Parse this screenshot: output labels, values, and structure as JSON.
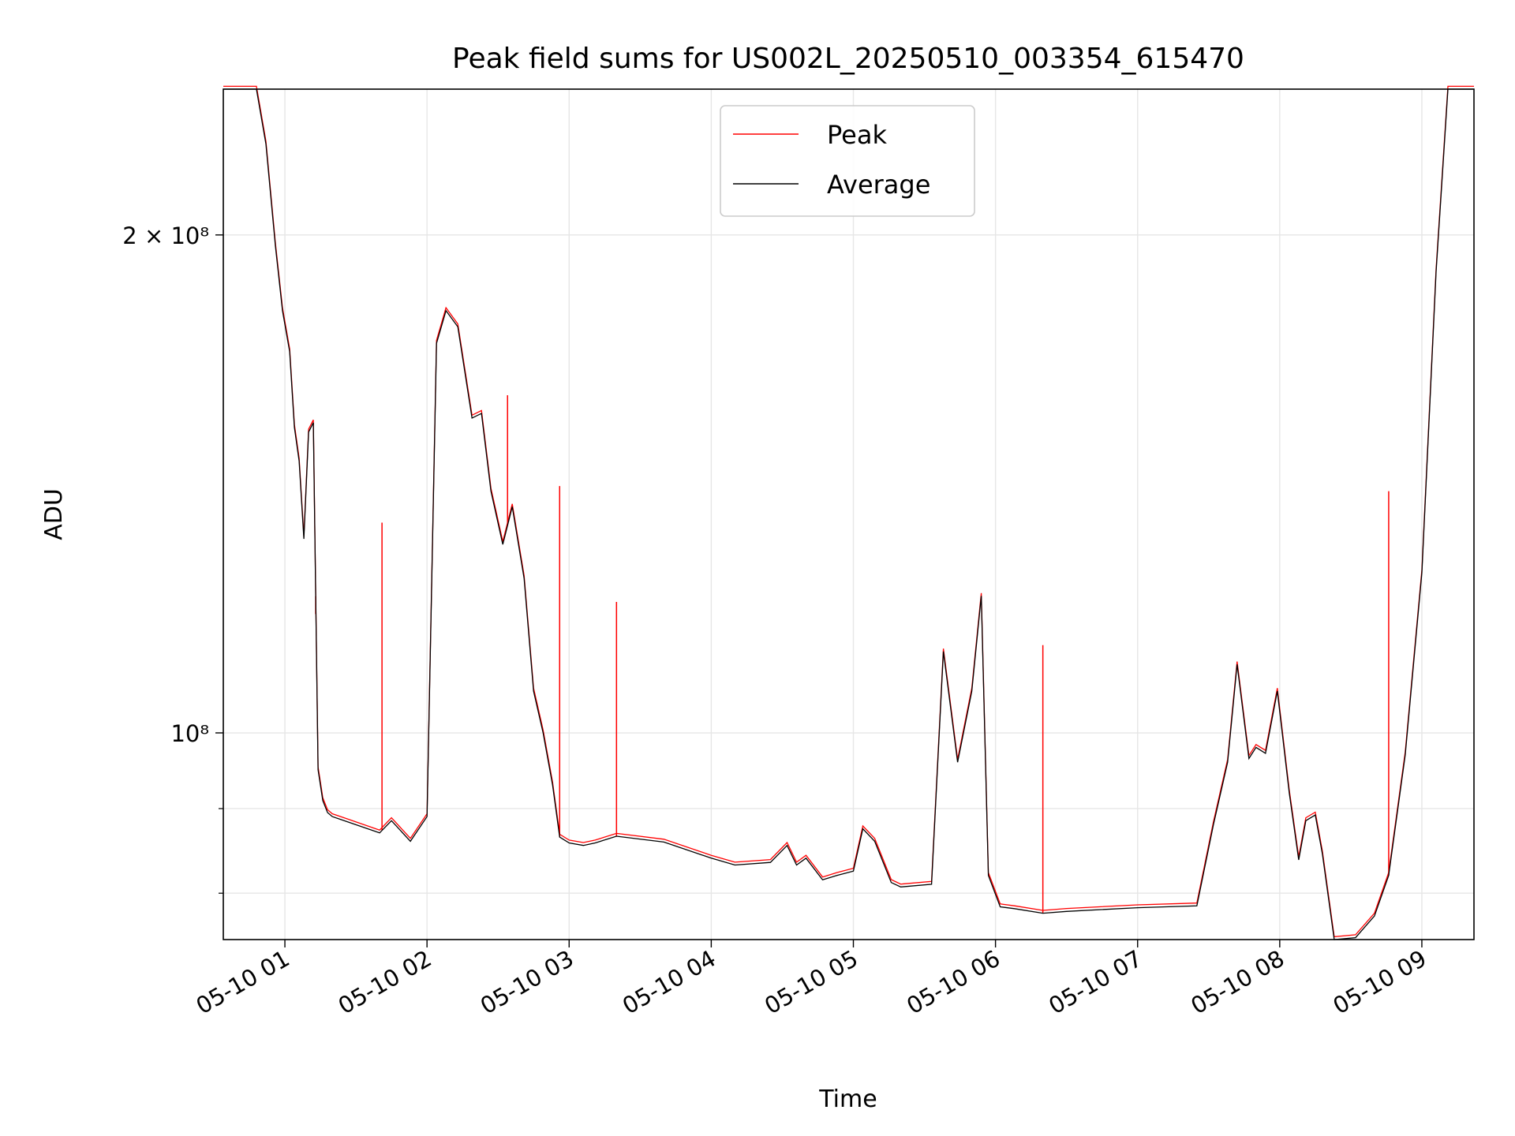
{
  "chart_data": {
    "type": "line",
    "title": "Peak field sums for US002L_20250510_003354_615470",
    "xlabel": "Time",
    "ylabel": "ADU",
    "xlim": [
      "2025-05-10 00:34",
      "2025-05-10 09:22"
    ],
    "ylim": [
      75000000,
      245000000
    ],
    "yscale": "log",
    "grid": true,
    "legend_position": "top-center",
    "x_ticks": [
      "05-10 01",
      "05-10 02",
      "05-10 03",
      "05-10 04",
      "05-10 05",
      "05-10 06",
      "05-10 07",
      "05-10 08",
      "05-10 09"
    ],
    "y_ticks": [
      {
        "value": 200000000,
        "label": "2 × 10⁸"
      },
      {
        "value": 100000000,
        "label": "10⁸"
      }
    ],
    "x": [
      "2025-05-10 00:34",
      "2025-05-10 00:48",
      "2025-05-10 00:52",
      "2025-05-10 00:56",
      "2025-05-10 00:59",
      "2025-05-10 01:02",
      "2025-05-10 01:04",
      "2025-05-10 01:06",
      "2025-05-10 01:08",
      "2025-05-10 01:10",
      "2025-05-10 01:12",
      "2025-05-10 01:14",
      "2025-05-10 01:16",
      "2025-05-10 01:18",
      "2025-05-10 01:20",
      "2025-05-10 01:25",
      "2025-05-10 01:40",
      "2025-05-10 01:45",
      "2025-05-10 01:53",
      "2025-05-10 02:00",
      "2025-05-10 02:04",
      "2025-05-10 02:08",
      "2025-05-10 02:13",
      "2025-05-10 02:19",
      "2025-05-10 02:23",
      "2025-05-10 02:27",
      "2025-05-10 02:32",
      "2025-05-10 02:36",
      "2025-05-10 02:41",
      "2025-05-10 02:45",
      "2025-05-10 02:49",
      "2025-05-10 02:53",
      "2025-05-10 02:56",
      "2025-05-10 03:00",
      "2025-05-10 03:06",
      "2025-05-10 03:11",
      "2025-05-10 03:20",
      "2025-05-10 03:40",
      "2025-05-10 04:00",
      "2025-05-10 04:10",
      "2025-05-10 04:25",
      "2025-05-10 04:32",
      "2025-05-10 04:36",
      "2025-05-10 04:40",
      "2025-05-10 04:47",
      "2025-05-10 04:53",
      "2025-05-10 05:00",
      "2025-05-10 05:04",
      "2025-05-10 05:09",
      "2025-05-10 05:16",
      "2025-05-10 05:20",
      "2025-05-10 05:33",
      "2025-05-10 05:38",
      "2025-05-10 05:44",
      "2025-05-10 05:50",
      "2025-05-10 05:54",
      "2025-05-10 05:57",
      "2025-05-10 06:02",
      "2025-05-10 06:08",
      "2025-05-10 06:20",
      "2025-05-10 06:30",
      "2025-05-10 07:00",
      "2025-05-10 07:25",
      "2025-05-10 07:32",
      "2025-05-10 07:38",
      "2025-05-10 07:42",
      "2025-05-10 07:47",
      "2025-05-10 07:50",
      "2025-05-10 07:54",
      "2025-05-10 07:59",
      "2025-05-10 08:04",
      "2025-05-10 08:08",
      "2025-05-10 08:11",
      "2025-05-10 08:15",
      "2025-05-10 08:18",
      "2025-05-10 08:23",
      "2025-05-10 08:32",
      "2025-05-10 08:40",
      "2025-05-10 08:46",
      "2025-05-10 08:53",
      "2025-05-10 09:00",
      "2025-05-10 09:06",
      "2025-05-10 09:11",
      "2025-05-10 09:22"
    ],
    "series": [
      {
        "name": "Average",
        "color": "#000000",
        "values": [
          245000000,
          245000000,
          227000000,
          197000000,
          180000000,
          170000000,
          153000000,
          146000000,
          131000000,
          152000000,
          154000000,
          95000000,
          91000000,
          89500000,
          89000000,
          88500000,
          87000000,
          88500000,
          86000000,
          89000000,
          172000000,
          180000000,
          176000000,
          155000000,
          156000000,
          140000000,
          130000000,
          137000000,
          124000000,
          106000000,
          100000000,
          93000000,
          86500000,
          85800000,
          85500000,
          85800000,
          86600000,
          85900000,
          84000000,
          83200000,
          83500000,
          85500000,
          83200000,
          84000000,
          81500000,
          82000000,
          82500000,
          87500000,
          86000000,
          81200000,
          80700000,
          81000000,
          112000000,
          96000000,
          106000000,
          121000000,
          82000000,
          78500000,
          78300000,
          77800000,
          78000000,
          78400000,
          78600000,
          88000000,
          96000000,
          110000000,
          96500000,
          98000000,
          97200000,
          106000000,
          92000000,
          83800000,
          88500000,
          89200000,
          84500000,
          75000000,
          75200000,
          77500000,
          82000000,
          97000000,
          125000000,
          190000000,
          245000000,
          245000000
        ]
      },
      {
        "name": "Peak",
        "color": "#ff0000",
        "spikes": [
          {
            "x": "2025-05-10 01:13",
            "value": 118000000
          },
          {
            "x": "2025-05-10 01:41",
            "value": 134000000
          },
          {
            "x": "2025-05-10 02:34",
            "value": 160000000
          },
          {
            "x": "2025-05-10 02:56",
            "value": 141000000
          },
          {
            "x": "2025-05-10 03:20",
            "value": 120000000
          },
          {
            "x": "2025-05-10 06:20",
            "value": 113000000
          },
          {
            "x": "2025-05-10 08:46",
            "value": 140000000
          }
        ]
      }
    ]
  }
}
